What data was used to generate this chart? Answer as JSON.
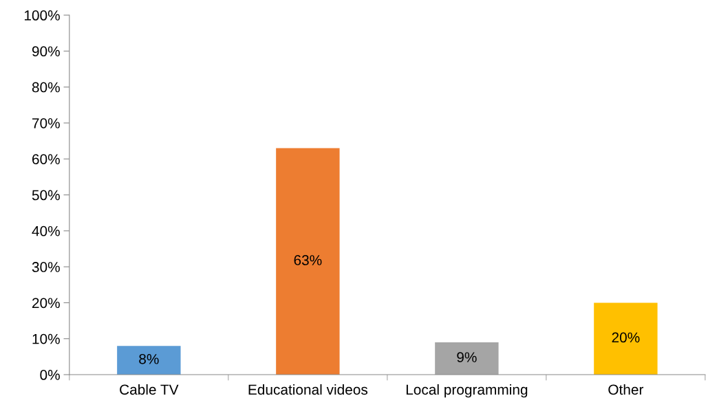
{
  "chart_data": {
    "type": "bar",
    "categories": [
      "Cable TV",
      "Educational videos",
      "Local programming",
      "Other"
    ],
    "values": [
      8,
      63,
      9,
      20
    ],
    "colors": [
      "#5b9bd5",
      "#ed7d31",
      "#a5a5a5",
      "#ffc000"
    ],
    "value_labels": [
      "8%",
      "63%",
      "9%",
      "20%"
    ],
    "ylim": [
      0,
      100
    ],
    "yticks": [
      {
        "value": 0,
        "label": "0%"
      },
      {
        "value": 10,
        "label": "10%"
      },
      {
        "value": 20,
        "label": "20%"
      },
      {
        "value": 30,
        "label": "30%"
      },
      {
        "value": 40,
        "label": "40%"
      },
      {
        "value": 50,
        "label": "50%"
      },
      {
        "value": 60,
        "label": "60%"
      },
      {
        "value": 70,
        "label": "70%"
      },
      {
        "value": 80,
        "label": "80%"
      },
      {
        "value": 90,
        "label": "90%"
      },
      {
        "value": 100,
        "label": "100%"
      }
    ],
    "grid": false
  }
}
